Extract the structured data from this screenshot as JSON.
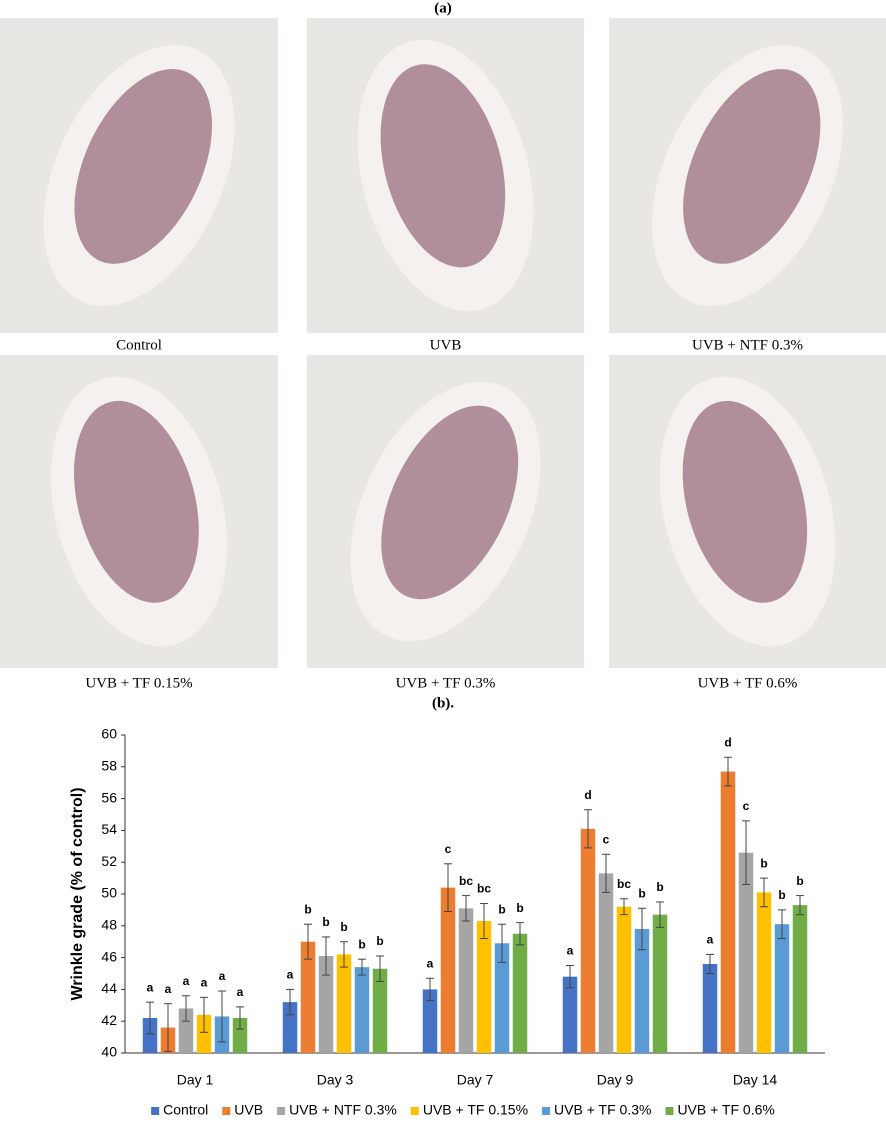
{
  "panels": {
    "a_label": "(a)",
    "b_label": "(b).",
    "photo_captions": [
      "Control",
      "UVB",
      "UVB + NTF 0.3%",
      "UVB + TF 0.15%",
      "UVB + TF 0.3%",
      "UVB + TF 0.6%"
    ]
  },
  "chart_data": {
    "type": "bar",
    "y_label": "Wrinkle grade (% of control)",
    "categories": [
      "Day 1",
      "Day 3",
      "Day 7",
      "Day 9",
      "Day 14"
    ],
    "ylim": [
      40,
      60
    ],
    "yticks": [
      40,
      42,
      44,
      46,
      48,
      50,
      52,
      54,
      56,
      58,
      60
    ],
    "grid": false,
    "legend": "bottom",
    "series": [
      {
        "name": "Control",
        "color": "#4472c4",
        "values": [
          42.2,
          43.2,
          44.0,
          44.8,
          45.6
        ],
        "errors": [
          1.0,
          0.8,
          0.7,
          0.7,
          0.6
        ],
        "letters": [
          "a",
          "a",
          "a",
          "a",
          "a"
        ]
      },
      {
        "name": "UVB",
        "color": "#ed7d31",
        "values": [
          41.6,
          47.0,
          50.4,
          54.1,
          57.7
        ],
        "errors": [
          1.5,
          1.1,
          1.5,
          1.2,
          0.9
        ],
        "letters": [
          "a",
          "b",
          "c",
          "d",
          "d"
        ]
      },
      {
        "name": "UVB + NTF 0.3%",
        "color": "#a5a5a5",
        "values": [
          42.8,
          46.1,
          49.1,
          51.3,
          52.6
        ],
        "errors": [
          0.8,
          1.2,
          0.8,
          1.2,
          2.0
        ],
        "letters": [
          "a",
          "b",
          "bc",
          "c",
          "c"
        ]
      },
      {
        "name": "UVB + TF 0.15%",
        "color": "#ffc000",
        "values": [
          42.4,
          46.2,
          48.3,
          49.2,
          50.1
        ],
        "errors": [
          1.1,
          0.8,
          1.1,
          0.5,
          0.9
        ],
        "letters": [
          "a",
          "b",
          "bc",
          "bc",
          "b"
        ]
      },
      {
        "name": "UVB + TF 0.3%",
        "color": "#5b9bd5",
        "values": [
          42.3,
          45.4,
          46.9,
          47.8,
          48.1
        ],
        "errors": [
          1.6,
          0.5,
          1.2,
          1.3,
          0.9
        ],
        "letters": [
          "a",
          "b",
          "b",
          "b",
          "b"
        ]
      },
      {
        "name": "UVB + TF 0.6%",
        "color": "#70ad47",
        "values": [
          42.2,
          45.3,
          47.5,
          48.7,
          49.3
        ],
        "errors": [
          0.7,
          0.8,
          0.7,
          0.8,
          0.6
        ],
        "letters": [
          "a",
          "b",
          "b",
          "b",
          "b"
        ]
      }
    ]
  }
}
